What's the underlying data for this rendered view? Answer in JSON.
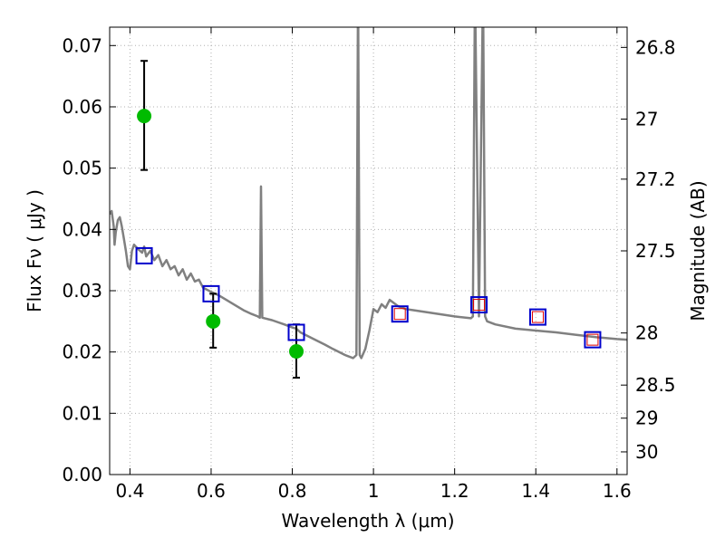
{
  "chart_data": {
    "type": "scatter",
    "title": "",
    "xlabel": "Wavelength  λ (μm)",
    "ylabel": "Flux  Fν  ( μJy )",
    "y2label": "Magnitude (AB)",
    "xlim": [
      0.35,
      1.625
    ],
    "ylim": [
      0.0,
      0.073
    ],
    "grid": true,
    "x_ticks": [
      0.4,
      0.6,
      0.8,
      1.0,
      1.2,
      1.4,
      1.6
    ],
    "x_tick_labels": [
      "0.4",
      "0.6",
      "0.8",
      "1",
      "1.2",
      "1.4",
      "1.6"
    ],
    "y_ticks": [
      0.0,
      0.01,
      0.02,
      0.03,
      0.04,
      0.05,
      0.06,
      0.07
    ],
    "y_tick_labels": [
      "0.00",
      "0.01",
      "0.02",
      "0.03",
      "0.04",
      "0.05",
      "0.06",
      "0.07"
    ],
    "y2_ticks": [
      {
        "flux": 0.0697,
        "label": "26.8"
      },
      {
        "flux": 0.058,
        "label": "27"
      },
      {
        "flux": 0.0482,
        "label": "27.2"
      },
      {
        "flux": 0.0365,
        "label": "27.5"
      },
      {
        "flux": 0.0231,
        "label": "28"
      },
      {
        "flux": 0.0146,
        "label": "28.5"
      },
      {
        "flux": 0.0092,
        "label": "29"
      },
      {
        "flux": 0.0037,
        "label": "30"
      }
    ],
    "colors": {
      "model": "#808080",
      "observed": "#00bb00",
      "model_box": "#0000cc",
      "filter_box": "#dd0000",
      "grid": "#b0b0b0",
      "errorbar": "#000000"
    },
    "series": [
      {
        "kind": "model_sed",
        "points": [
          [
            0.35,
            0.0425
          ],
          [
            0.355,
            0.043
          ],
          [
            0.36,
            0.0405
          ],
          [
            0.362,
            0.0375
          ],
          [
            0.365,
            0.0395
          ],
          [
            0.37,
            0.0415
          ],
          [
            0.375,
            0.042
          ],
          [
            0.38,
            0.0405
          ],
          [
            0.385,
            0.0385
          ],
          [
            0.39,
            0.0365
          ],
          [
            0.395,
            0.034
          ],
          [
            0.4,
            0.0335
          ],
          [
            0.405,
            0.0365
          ],
          [
            0.41,
            0.0375
          ],
          [
            0.42,
            0.0368
          ],
          [
            0.43,
            0.0362
          ],
          [
            0.435,
            0.0372
          ],
          [
            0.44,
            0.0356
          ],
          [
            0.45,
            0.0365
          ],
          [
            0.46,
            0.035
          ],
          [
            0.47,
            0.0358
          ],
          [
            0.48,
            0.034
          ],
          [
            0.49,
            0.035
          ],
          [
            0.5,
            0.0335
          ],
          [
            0.51,
            0.034
          ],
          [
            0.52,
            0.0325
          ],
          [
            0.53,
            0.0335
          ],
          [
            0.54,
            0.0318
          ],
          [
            0.55,
            0.0328
          ],
          [
            0.56,
            0.0315
          ],
          [
            0.57,
            0.0318
          ],
          [
            0.58,
            0.0305
          ],
          [
            0.6,
            0.0298
          ],
          [
            0.62,
            0.0292
          ],
          [
            0.64,
            0.0284
          ],
          [
            0.66,
            0.0276
          ],
          [
            0.68,
            0.0268
          ],
          [
            0.7,
            0.0262
          ],
          [
            0.715,
            0.0258
          ],
          [
            0.72,
            0.0256
          ],
          [
            0.723,
            0.047
          ],
          [
            0.726,
            0.0256
          ],
          [
            0.75,
            0.0252
          ],
          [
            0.78,
            0.0245
          ],
          [
            0.8,
            0.024
          ],
          [
            0.81,
            0.0238
          ],
          [
            0.82,
            0.0232
          ],
          [
            0.85,
            0.0222
          ],
          [
            0.88,
            0.0212
          ],
          [
            0.9,
            0.0205
          ],
          [
            0.93,
            0.0195
          ],
          [
            0.95,
            0.019
          ],
          [
            0.958,
            0.0195
          ],
          [
            0.962,
            0.08
          ],
          [
            0.966,
            0.0195
          ],
          [
            0.97,
            0.019
          ],
          [
            0.98,
            0.0205
          ],
          [
            0.99,
            0.0235
          ],
          [
            1.0,
            0.027
          ],
          [
            1.01,
            0.0265
          ],
          [
            1.02,
            0.0278
          ],
          [
            1.03,
            0.0272
          ],
          [
            1.04,
            0.0285
          ],
          [
            1.06,
            0.0275
          ],
          [
            1.08,
            0.027
          ],
          [
            1.1,
            0.0268
          ],
          [
            1.15,
            0.0263
          ],
          [
            1.2,
            0.0258
          ],
          [
            1.24,
            0.0255
          ],
          [
            1.245,
            0.0258
          ],
          [
            1.25,
            0.08
          ],
          [
            1.26,
            0.0258
          ],
          [
            1.27,
            0.08
          ],
          [
            1.275,
            0.0258
          ],
          [
            1.28,
            0.025
          ],
          [
            1.3,
            0.0245
          ],
          [
            1.35,
            0.0238
          ],
          [
            1.4,
            0.0235
          ],
          [
            1.45,
            0.0232
          ],
          [
            1.5,
            0.0228
          ],
          [
            1.55,
            0.0224
          ],
          [
            1.6,
            0.0221
          ],
          [
            1.625,
            0.022
          ]
        ]
      },
      {
        "kind": "observed_photometry",
        "points": [
          {
            "x": 0.435,
            "y": 0.0585,
            "yerr_low": 0.0497,
            "yerr_high": 0.0675
          },
          {
            "x": 0.605,
            "y": 0.025,
            "yerr_low": 0.0207,
            "yerr_high": 0.0295
          },
          {
            "x": 0.81,
            "y": 0.0201,
            "yerr_low": 0.0158,
            "yerr_high": 0.0245
          }
        ]
      },
      {
        "kind": "model_photometry",
        "points": [
          {
            "x": 0.435,
            "y": 0.0357
          },
          {
            "x": 0.6,
            "y": 0.0295
          },
          {
            "x": 0.81,
            "y": 0.0232
          },
          {
            "x": 1.065,
            "y": 0.0262
          },
          {
            "x": 1.26,
            "y": 0.0277
          },
          {
            "x": 1.405,
            "y": 0.0257
          },
          {
            "x": 1.54,
            "y": 0.022
          }
        ]
      },
      {
        "kind": "filter_photometry",
        "points": [
          {
            "x": 1.065,
            "y": 0.0262
          },
          {
            "x": 1.26,
            "y": 0.0277
          },
          {
            "x": 1.405,
            "y": 0.0257
          },
          {
            "x": 1.54,
            "y": 0.022
          }
        ]
      }
    ]
  }
}
